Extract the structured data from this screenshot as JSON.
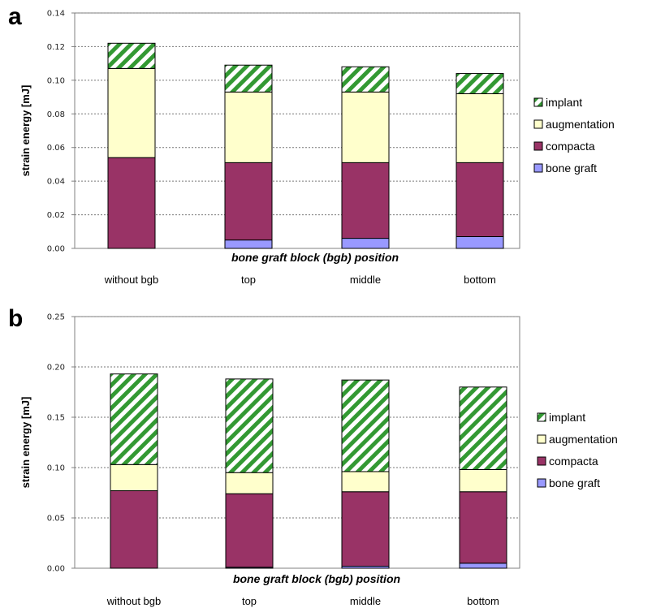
{
  "chart_data": [
    {
      "type": "bar",
      "stacked": true,
      "panel": "a",
      "categories": [
        "without bgb",
        "top",
        "middle",
        "bottom"
      ],
      "series": [
        {
          "name": "bone graft",
          "color": "#9999ff",
          "values": [
            0.0,
            0.005,
            0.006,
            0.007
          ]
        },
        {
          "name": "compacta",
          "color": "#993366",
          "values": [
            0.054,
            0.046,
            0.045,
            0.044
          ]
        },
        {
          "name": "augmentation",
          "color": "#ffffcc",
          "values": [
            0.053,
            0.042,
            0.042,
            0.041
          ]
        },
        {
          "name": "implant",
          "color": "#339933",
          "pattern": "diagonal-hatch",
          "values": [
            0.015,
            0.016,
            0.015,
            0.012
          ]
        }
      ],
      "legend_order": [
        "implant",
        "augmentation",
        "compacta",
        "bone graft"
      ],
      "xlabel": "bone graft block (bgb) position",
      "ylabel": "strain energy  [mJ]",
      "ylim": [
        0,
        0.14
      ],
      "yticks": [
        "0.00",
        "0.02",
        "0.04",
        "0.06",
        "0.08",
        "0.10",
        "0.12",
        "0.14"
      ],
      "grid": true,
      "legend_position": "right"
    },
    {
      "type": "bar",
      "stacked": true,
      "panel": "b",
      "categories": [
        "without bgb",
        "top",
        "middle",
        "bottom"
      ],
      "series": [
        {
          "name": "bone graft",
          "color": "#9999ff",
          "values": [
            0.0,
            0.001,
            0.002,
            0.005
          ]
        },
        {
          "name": "compacta",
          "color": "#993366",
          "values": [
            0.077,
            0.073,
            0.074,
            0.071
          ]
        },
        {
          "name": "augmentation",
          "color": "#ffffcc",
          "values": [
            0.026,
            0.021,
            0.02,
            0.022
          ]
        },
        {
          "name": "implant",
          "color": "#339933",
          "pattern": "diagonal-hatch",
          "values": [
            0.09,
            0.093,
            0.091,
            0.082
          ]
        }
      ],
      "legend_order": [
        "implant",
        "augmentation",
        "compacta",
        "bone graft"
      ],
      "legend_labels": [
        "implant",
        "augmentation",
        "compacta",
        "bone graft"
      ],
      "xlabel": "bone graft block (bgb) position",
      "ylabel": "strain energy  [mJ]",
      "ylim": [
        0,
        0.25
      ],
      "yticks": [
        "0.00",
        "0.05",
        "0.10",
        "0.15",
        "0.20",
        "0.25"
      ],
      "grid": true,
      "legend_position": "right"
    }
  ]
}
